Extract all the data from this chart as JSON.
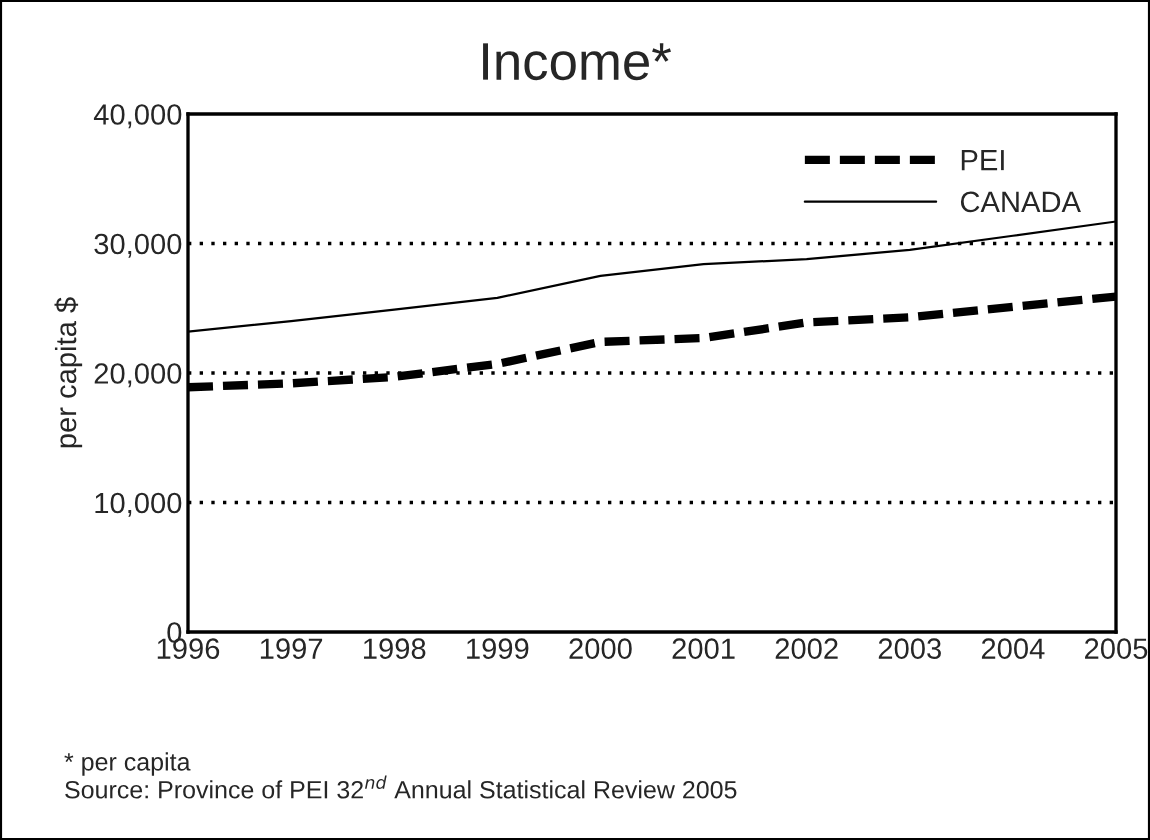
{
  "chart_data": {
    "type": "line",
    "title": "Income*",
    "ylabel": "per capita $",
    "x": [
      1996,
      1997,
      1998,
      1999,
      2000,
      2001,
      2002,
      2003,
      2004,
      2005
    ],
    "series": [
      {
        "name": "PEI",
        "color": "#000000",
        "line_style": "dashed",
        "values": [
          18900,
          19200,
          19700,
          20700,
          22400,
          22700,
          23900,
          24300,
          25100,
          25900
        ]
      },
      {
        "name": "CANADA",
        "color": "#000000",
        "line_style": "solid",
        "values": [
          23200,
          24000,
          24900,
          25800,
          27500,
          28400,
          28800,
          29500,
          30600,
          31700
        ]
      }
    ],
    "xlim": [
      1996,
      2005
    ],
    "xticks": [
      1996,
      1997,
      1998,
      1999,
      2000,
      2001,
      2002,
      2003,
      2004,
      2005
    ],
    "ylim": [
      0,
      40000
    ],
    "yticks": [
      {
        "value": 0,
        "label": "0"
      },
      {
        "value": 10000,
        "label": "10,000"
      },
      {
        "value": 20000,
        "label": "20,000"
      },
      {
        "value": 30000,
        "label": "30,000"
      },
      {
        "value": 40000,
        "label": "40,000"
      }
    ],
    "grid": "y",
    "legend": "top right",
    "marker": "none",
    "annotations": [
      "* per capita",
      "Source: Province of PEI 32$^{nd}$ Annual Statistical Review 2005"
    ]
  }
}
